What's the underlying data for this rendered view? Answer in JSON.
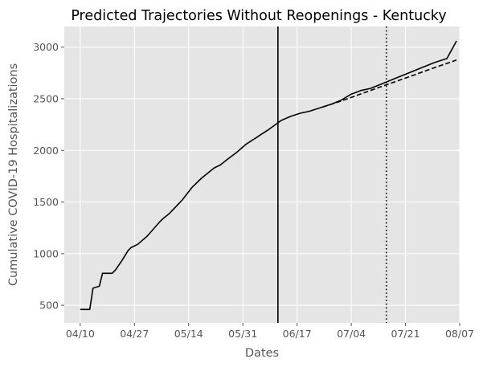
{
  "chart_data": {
    "type": "line",
    "title": "Predicted Trajectories Without Reopenings - Kentucky",
    "xlabel": "Dates",
    "ylabel": "Cumulative COVID-19 Hospitalizations",
    "xlim": [
      "2020-04-05",
      "2020-08-07"
    ],
    "ylim": [
      330,
      3200
    ],
    "x_ticks": [
      {
        "date": "2020-04-10",
        "label": "04/10"
      },
      {
        "date": "2020-04-27",
        "label": "04/27"
      },
      {
        "date": "2020-05-14",
        "label": "05/14"
      },
      {
        "date": "2020-05-31",
        "label": "05/31"
      },
      {
        "date": "2020-06-17",
        "label": "06/17"
      },
      {
        "date": "2020-07-04",
        "label": "07/04"
      },
      {
        "date": "2020-07-21",
        "label": "07/21"
      },
      {
        "date": "2020-08-07",
        "label": "08/07"
      }
    ],
    "y_ticks": [
      500,
      1000,
      1500,
      2000,
      2500,
      3000
    ],
    "grid": true,
    "background": "#e5e5e5",
    "line_color": "#000000",
    "series": [
      {
        "style": "solid",
        "points": [
          [
            "2020-04-10",
            460
          ],
          [
            "2020-04-13",
            460
          ],
          [
            "2020-04-14",
            665
          ],
          [
            "2020-04-16",
            685
          ],
          [
            "2020-04-17",
            810
          ],
          [
            "2020-04-20",
            810
          ],
          [
            "2020-04-21",
            840
          ],
          [
            "2020-04-23",
            930
          ],
          [
            "2020-04-25",
            1030
          ],
          [
            "2020-04-26",
            1060
          ],
          [
            "2020-04-28",
            1090
          ],
          [
            "2020-05-01",
            1170
          ],
          [
            "2020-05-05",
            1310
          ],
          [
            "2020-05-06",
            1340
          ],
          [
            "2020-05-08",
            1390
          ],
          [
            "2020-05-12",
            1520
          ],
          [
            "2020-05-15",
            1640
          ],
          [
            "2020-05-18",
            1730
          ],
          [
            "2020-05-22",
            1830
          ],
          [
            "2020-05-24",
            1860
          ],
          [
            "2020-05-26",
            1910
          ],
          [
            "2020-05-29",
            1980
          ],
          [
            "2020-06-01",
            2060
          ],
          [
            "2020-06-04",
            2120
          ],
          [
            "2020-06-06",
            2160
          ],
          [
            "2020-06-08",
            2200
          ],
          [
            "2020-06-12",
            2290
          ],
          [
            "2020-06-15",
            2330
          ],
          [
            "2020-06-18",
            2360
          ],
          [
            "2020-06-21",
            2380
          ],
          [
            "2020-06-25",
            2420
          ],
          [
            "2020-06-28",
            2450
          ],
          [
            "2020-07-01",
            2490
          ],
          [
            "2020-07-04",
            2545
          ],
          [
            "2020-07-07",
            2580
          ],
          [
            "2020-07-10",
            2600
          ],
          [
            "2020-07-14",
            2650
          ],
          [
            "2020-07-18",
            2700
          ],
          [
            "2020-07-22",
            2750
          ],
          [
            "2020-07-26",
            2800
          ],
          [
            "2020-07-30",
            2850
          ],
          [
            "2020-08-03",
            2890
          ],
          [
            "2020-08-06",
            3060
          ]
        ]
      },
      {
        "style": "dashed",
        "points": [
          [
            "2020-06-25",
            2420
          ],
          [
            "2020-07-01",
            2480
          ],
          [
            "2020-07-10",
            2580
          ],
          [
            "2020-07-20",
            2690
          ],
          [
            "2020-07-30",
            2800
          ],
          [
            "2020-08-06",
            2875
          ]
        ]
      }
    ],
    "vertical_lines": [
      {
        "date": "2020-06-11",
        "style": "solid"
      },
      {
        "date": "2020-07-15",
        "style": "dotted"
      }
    ]
  }
}
